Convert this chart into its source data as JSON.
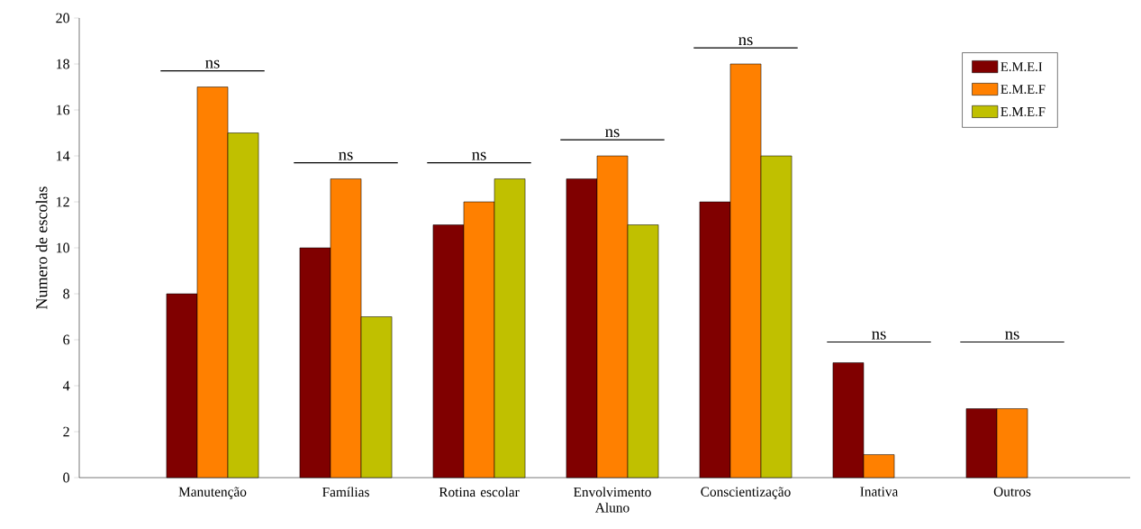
{
  "chart_data": {
    "type": "bar",
    "ylabel": "Numero de escolas",
    "categories": [
      "Manutenção",
      "Famílias",
      "Rotina escolar",
      "Envolvimento Aluno",
      "Conscientização",
      "Inativa",
      "Outros"
    ],
    "series": [
      {
        "name": "E.M.E.I",
        "color": "#800000",
        "values": [
          8,
          10,
          11,
          13,
          12,
          5,
          3
        ]
      },
      {
        "name": "E.M.E.F",
        "color": "#ff8000",
        "values": [
          17,
          13,
          12,
          14,
          18,
          1,
          3
        ]
      },
      {
        "name": "E.M.E.F",
        "color": "#c0c000",
        "values": [
          15,
          7,
          13,
          11,
          14,
          null,
          null
        ]
      }
    ],
    "ylim": [
      0,
      20
    ],
    "yticks": [
      0,
      2,
      4,
      6,
      8,
      10,
      12,
      14,
      16,
      18,
      20
    ],
    "legend": "top right",
    "grid": false,
    "annotations": [
      "ns",
      "ns",
      "ns",
      "ns",
      "ns",
      "ns",
      "ns"
    ]
  }
}
